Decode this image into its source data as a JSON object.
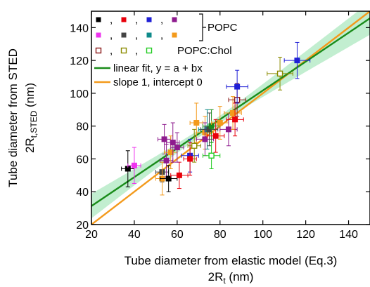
{
  "chart_data": {
    "type": "scatter",
    "xlabel": "Tube diameter from elastic model (Eq.3)",
    "xlabel_sub": "2R",
    "xlabel_sub2": "t",
    "xlabel_unit": " (nm)",
    "ylabel": "Tube diameter from STED",
    "ylabel_sub": "2R",
    "ylabel_sub2": "t,STED",
    "ylabel_unit": " (nm)",
    "xlim": [
      20,
      150
    ],
    "ylim": [
      20,
      150
    ],
    "xticks": [
      20,
      40,
      60,
      80,
      100,
      120,
      140
    ],
    "yticks": [
      20,
      40,
      60,
      80,
      100,
      120,
      140
    ],
    "grid": false,
    "legend_position": "top-left",
    "legend": {
      "group_popc": "POPC",
      "group_chol": "POPC:Chol",
      "sep": ",",
      "fit_label": "linear fit, y = a + bx",
      "ref_label": "slope 1, intercept 0",
      "popc_colors": [
        "#000000",
        "#e8000b",
        "#1f1fd6",
        "#8e1b8e",
        "#ee33ee",
        "#444444",
        "#0e8a8a",
        "#f39a1c"
      ],
      "chol_colors": [
        "#8b1a1a",
        "#8b8b00",
        "#22cc22"
      ]
    },
    "lines": {
      "fit": {
        "intercept": 13.7,
        "slope": 0.88,
        "color": "#1a8c1a"
      },
      "identity": {
        "intercept": 0,
        "slope": 1,
        "color": "#f39a1c"
      },
      "confidence_band_color": "#9ae3b0"
    },
    "points": [
      {
        "x": 37,
        "y": 54,
        "xerr": 3,
        "yerr": 11,
        "color": "#000000",
        "filled": true
      },
      {
        "x": 40,
        "y": 56,
        "xerr": 3,
        "yerr": 11,
        "color": "#ee33ee",
        "filled": true
      },
      {
        "x": 53,
        "y": 52,
        "xerr": 3,
        "yerr": 6,
        "color": "#444444",
        "filled": true
      },
      {
        "x": 53,
        "y": 48,
        "xerr": 3,
        "yerr": 10,
        "color": "#f39a1c",
        "filled": true
      },
      {
        "x": 54,
        "y": 72,
        "xerr": 3,
        "yerr": 9,
        "color": "#8e1b8e",
        "filled": true
      },
      {
        "x": 55,
        "y": 59,
        "xerr": 3,
        "yerr": 10,
        "color": "#8e1b8e",
        "filled": true
      },
      {
        "x": 56,
        "y": 48,
        "xerr": 4,
        "yerr": 8,
        "color": "#000000",
        "filled": true
      },
      {
        "x": 57,
        "y": 64,
        "xerr": 3,
        "yerr": 10,
        "color": "#f39a1c",
        "filled": true
      },
      {
        "x": 58,
        "y": 70,
        "xerr": 3,
        "yerr": 12,
        "color": "#8e1b8e",
        "filled": true
      },
      {
        "x": 61,
        "y": 50,
        "xerr": 4,
        "yerr": 8,
        "color": "#e8000b",
        "filled": true
      },
      {
        "x": 60,
        "y": 67,
        "xerr": 3,
        "yerr": 9,
        "color": "#8e1b8e",
        "filled": true
      },
      {
        "x": 66,
        "y": 62,
        "xerr": 4,
        "yerr": 10,
        "color": "#1f1fd6",
        "filled": true
      },
      {
        "x": 66,
        "y": 60,
        "xerr": 3,
        "yerr": 10,
        "color": "#e8000b",
        "filled": true
      },
      {
        "x": 69,
        "y": 82,
        "xerr": 3,
        "yerr": 12,
        "color": "#f39a1c",
        "filled": true
      },
      {
        "x": 68,
        "y": 68,
        "xerr": 3,
        "yerr": 10,
        "color": "#8b8b00",
        "filled": false
      },
      {
        "x": 73,
        "y": 76,
        "xerr": 4,
        "yerr": 10,
        "color": "#f39a1c",
        "filled": true
      },
      {
        "x": 74,
        "y": 78,
        "xerr": 4,
        "yerr": 12,
        "color": "#0e8a8a",
        "filled": true
      },
      {
        "x": 73,
        "y": 72,
        "xerr": 4,
        "yerr": 10,
        "color": "#8e1b8e",
        "filled": true
      },
      {
        "x": 75,
        "y": 78,
        "xerr": 4,
        "yerr": 10,
        "color": "#444444",
        "filled": true
      },
      {
        "x": 76,
        "y": 62,
        "xerr": 4,
        "yerr": 8,
        "color": "#22cc22",
        "filled": false
      },
      {
        "x": 76,
        "y": 80,
        "xerr": 4,
        "yerr": 10,
        "color": "#1a8c1a",
        "filled": true
      },
      {
        "x": 78,
        "y": 74,
        "xerr": 4,
        "yerr": 10,
        "color": "#e8000b",
        "filled": true
      },
      {
        "x": 80,
        "y": 82,
        "xerr": 4,
        "yerr": 10,
        "color": "#f39a1c",
        "filled": true
      },
      {
        "x": 84,
        "y": 78,
        "xerr": 4,
        "yerr": 10,
        "color": "#8e1b8e",
        "filled": true
      },
      {
        "x": 86,
        "y": 88,
        "xerr": 4,
        "yerr": 10,
        "color": "#f39a1c",
        "filled": true
      },
      {
        "x": 87,
        "y": 84,
        "xerr": 4,
        "yerr": 10,
        "color": "#e8000b",
        "filled": true
      },
      {
        "x": 88,
        "y": 96,
        "xerr": 4,
        "yerr": 10,
        "color": "#8b1a1a",
        "filled": false
      },
      {
        "x": 88,
        "y": 104,
        "xerr": 5,
        "yerr": 10,
        "color": "#1f1fd6",
        "filled": true
      },
      {
        "x": 108,
        "y": 112,
        "xerr": 6,
        "yerr": 10,
        "color": "#8b8b00",
        "filled": false
      },
      {
        "x": 116,
        "y": 120,
        "xerr": 6,
        "yerr": 11,
        "color": "#1f1fd6",
        "filled": true
      }
    ]
  }
}
